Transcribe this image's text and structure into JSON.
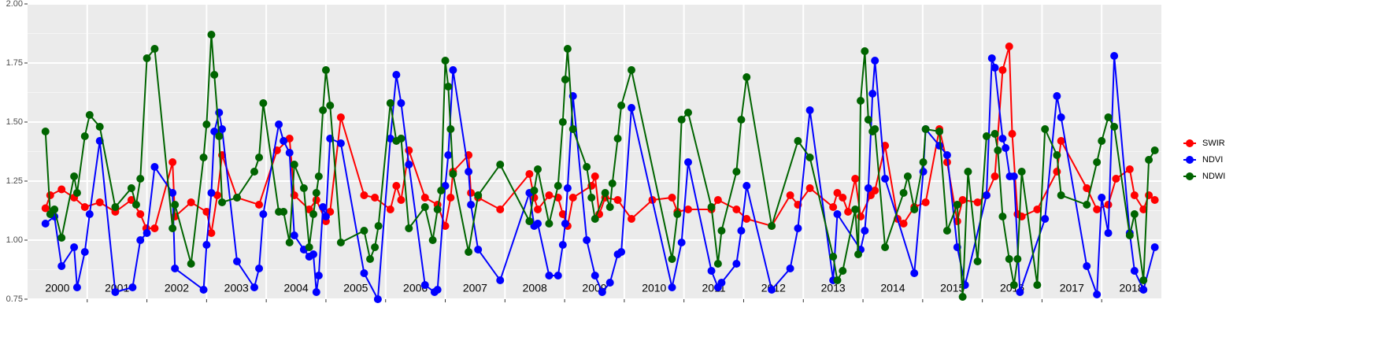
{
  "chart_data": {
    "type": "line",
    "xlim": [
      2000,
      2019
    ],
    "xticks": [
      2001,
      2002,
      2003,
      2004,
      2005,
      2006,
      2007,
      2008,
      2009,
      2010,
      2011,
      2012,
      2013,
      2014,
      2015,
      2016,
      2017,
      2018
    ],
    "ylim": [
      0.75,
      2.0
    ],
    "yticks": [
      0.75,
      {
        "value": 1.0,
        "label": "1.00"
      },
      1.25,
      {
        "value": 1.5,
        "label": "1.50"
      },
      1.75,
      {
        "value": 2.0,
        "label": "2.00"
      }
    ],
    "grid": true,
    "legend": "right",
    "annotations": [
      "2000",
      "2001",
      "2002",
      "2003",
      "2004",
      "2005",
      "2006",
      "2007",
      "2008",
      "2009",
      "2010",
      "2011",
      "2012",
      "2013",
      "2014",
      "2015",
      "2016",
      "2017",
      "2018"
    ],
    "series": [
      {
        "name": "SWIR",
        "color": "#ff0000",
        "x": [
          2000.3,
          2000.38,
          2000.57,
          2000.78,
          2000.96,
          2001.21,
          2001.47,
          2001.74,
          2001.89,
          2001.99,
          2002.13,
          2002.43,
          2002.47,
          2002.74,
          2003.0,
          2003.08,
          2003.18,
          2003.26,
          2003.51,
          2003.88,
          2004.18,
          2004.39,
          2004.47,
          2004.72,
          2004.84,
          2005.0,
          2005.07,
          2005.25,
          2005.64,
          2005.82,
          2006.08,
          2006.18,
          2006.26,
          2006.39,
          2006.66,
          2006.87,
          2007.0,
          2007.09,
          2007.13,
          2007.39,
          2007.43,
          2007.55,
          2007.92,
          2008.41,
          2008.49,
          2008.55,
          2008.74,
          2008.89,
          2008.97,
          2009.05,
          2009.14,
          2009.45,
          2009.51,
          2009.58,
          2009.68,
          2009.89,
          2010.12,
          2010.47,
          2010.8,
          2010.89,
          2011.07,
          2011.46,
          2011.57,
          2011.88,
          2012.05,
          2012.47,
          2012.78,
          2012.91,
          2013.11,
          2013.5,
          2013.57,
          2013.66,
          2013.75,
          2013.87,
          2013.96,
          2014.13,
          2014.2,
          2014.37,
          2014.58,
          2014.68,
          2014.86,
          2015.05,
          2015.28,
          2015.41,
          2015.58,
          2015.67,
          2015.92,
          2016.07,
          2016.21,
          2016.34,
          2016.45,
          2016.5,
          2016.59,
          2016.66,
          2016.92,
          2017.25,
          2017.32,
          2017.75,
          2017.92,
          2018.11,
          2018.24,
          2018.47,
          2018.55,
          2018.7,
          2018.79,
          2018.89
        ],
        "values": [
          1.135,
          1.19,
          1.215,
          1.18,
          1.14,
          1.16,
          1.12,
          1.17,
          1.11,
          1.05,
          1.05,
          1.33,
          1.1,
          1.16,
          1.12,
          1.03,
          1.19,
          1.36,
          1.18,
          1.15,
          1.38,
          1.43,
          1.19,
          1.13,
          1.17,
          1.08,
          1.12,
          1.52,
          1.19,
          1.18,
          1.13,
          1.23,
          1.17,
          1.38,
          1.18,
          1.15,
          1.06,
          1.18,
          1.29,
          1.36,
          1.2,
          1.18,
          1.13,
          1.28,
          1.18,
          1.13,
          1.19,
          1.18,
          1.11,
          1.06,
          1.18,
          1.23,
          1.27,
          1.11,
          1.18,
          1.17,
          1.09,
          1.17,
          1.18,
          1.12,
          1.13,
          1.13,
          1.17,
          1.13,
          1.09,
          1.06,
          1.19,
          1.15,
          1.22,
          1.14,
          1.2,
          1.18,
          1.12,
          1.26,
          1.1,
          1.19,
          1.21,
          1.4,
          1.09,
          1.07,
          1.14,
          1.16,
          1.47,
          1.33,
          1.08,
          1.17,
          1.16,
          1.19,
          1.27,
          1.72,
          1.82,
          1.45,
          1.11,
          1.1,
          1.13,
          1.29,
          1.42,
          1.22,
          1.13,
          1.15,
          1.26,
          1.3,
          1.19,
          1.13,
          1.19,
          1.17
        ]
      },
      {
        "name": "NDVI",
        "color": "#0000ff",
        "x": [
          2000.3,
          2000.45,
          2000.57,
          2000.78,
          2000.83,
          2000.96,
          2001.04,
          2001.21,
          2001.47,
          2001.76,
          2001.89,
          2002.0,
          2002.13,
          2002.43,
          2002.47,
          2002.95,
          2003.0,
          2003.08,
          2003.13,
          2003.21,
          2003.26,
          2003.51,
          2003.8,
          2003.88,
          2003.95,
          2004.21,
          2004.29,
          2004.39,
          2004.47,
          2004.63,
          2004.72,
          2004.79,
          2004.84,
          2004.88,
          2004.95,
          2005.0,
          2005.07,
          2005.25,
          2005.64,
          2005.87,
          2006.08,
          2006.18,
          2006.26,
          2006.39,
          2006.66,
          2006.82,
          2006.87,
          2007.0,
          2007.05,
          2007.13,
          2007.39,
          2007.43,
          2007.55,
          2007.92,
          2008.41,
          2008.49,
          2008.55,
          2008.74,
          2008.89,
          2008.97,
          2009.01,
          2009.05,
          2009.14,
          2009.37,
          2009.51,
          2009.63,
          2009.76,
          2009.89,
          2009.95,
          2010.12,
          2010.8,
          2010.96,
          2011.07,
          2011.46,
          2011.57,
          2011.63,
          2011.88,
          2011.96,
          2012.05,
          2012.47,
          2012.78,
          2012.91,
          2013.11,
          2013.5,
          2013.57,
          2013.96,
          2014.03,
          2014.09,
          2014.16,
          2014.2,
          2014.37,
          2014.86,
          2015.01,
          2015.05,
          2015.28,
          2015.41,
          2015.58,
          2015.71,
          2016.07,
          2016.16,
          2016.21,
          2016.34,
          2016.39,
          2016.46,
          2016.53,
          2016.63,
          2017.05,
          2017.25,
          2017.32,
          2017.75,
          2017.92,
          2018.0,
          2018.11,
          2018.21,
          2018.47,
          2018.55,
          2018.7,
          2018.89
        ],
        "values": [
          1.07,
          1.1,
          0.89,
          0.97,
          0.8,
          0.95,
          1.11,
          1.42,
          0.78,
          0.8,
          1.0,
          1.03,
          1.31,
          1.2,
          0.88,
          0.79,
          0.98,
          1.2,
          1.46,
          1.54,
          1.47,
          0.91,
          0.8,
          0.88,
          1.11,
          1.49,
          1.42,
          1.37,
          1.02,
          0.96,
          0.93,
          0.94,
          0.78,
          0.85,
          1.14,
          1.1,
          1.43,
          1.41,
          0.86,
          0.75,
          1.43,
          1.7,
          1.58,
          1.32,
          0.81,
          0.78,
          0.79,
          1.23,
          1.36,
          1.72,
          1.29,
          1.15,
          0.96,
          0.83,
          1.2,
          1.06,
          1.07,
          0.85,
          0.85,
          0.98,
          1.07,
          1.22,
          1.61,
          1.0,
          0.85,
          0.78,
          0.82,
          0.94,
          0.95,
          1.56,
          0.8,
          0.99,
          1.33,
          0.87,
          0.8,
          0.82,
          0.9,
          1.04,
          1.23,
          0.79,
          0.88,
          1.05,
          1.55,
          0.83,
          1.11,
          0.96,
          1.04,
          1.22,
          1.62,
          1.76,
          1.26,
          0.86,
          1.29,
          1.47,
          1.4,
          1.36,
          0.97,
          0.81,
          1.19,
          1.77,
          1.73,
          1.43,
          1.39,
          1.27,
          1.27,
          0.78,
          1.09,
          1.61,
          1.52,
          0.89,
          0.77,
          1.18,
          1.03,
          1.78,
          1.03,
          0.87,
          0.79,
          0.97
        ]
      },
      {
        "name": "NDWI",
        "color": "#006400",
        "x": [
          2000.3,
          2000.38,
          2000.45,
          2000.57,
          2000.78,
          2000.83,
          2000.96,
          2001.04,
          2001.21,
          2001.47,
          2001.74,
          2001.82,
          2001.89,
          2002.0,
          2002.13,
          2002.43,
          2002.47,
          2002.74,
          2002.95,
          2003.0,
          2003.08,
          2003.13,
          2003.21,
          2003.26,
          2003.51,
          2003.8,
          2003.88,
          2003.95,
          2004.21,
          2004.29,
          2004.39,
          2004.47,
          2004.63,
          2004.72,
          2004.79,
          2004.84,
          2004.88,
          2004.95,
          2005.0,
          2005.07,
          2005.25,
          2005.64,
          2005.74,
          2005.82,
          2005.88,
          2006.08,
          2006.18,
          2006.26,
          2006.39,
          2006.66,
          2006.79,
          2006.87,
          2006.93,
          2007.0,
          2007.05,
          2007.09,
          2007.13,
          2007.39,
          2007.55,
          2007.92,
          2008.41,
          2008.49,
          2008.55,
          2008.74,
          2008.89,
          2008.97,
          2009.01,
          2009.05,
          2009.14,
          2009.37,
          2009.45,
          2009.51,
          2009.68,
          2009.76,
          2009.8,
          2009.89,
          2009.95,
          2010.12,
          2010.8,
          2010.89,
          2010.96,
          2011.07,
          2011.46,
          2011.57,
          2011.63,
          2011.88,
          2011.96,
          2012.05,
          2012.47,
          2012.91,
          2013.11,
          2013.5,
          2013.57,
          2013.66,
          2013.87,
          2013.92,
          2013.96,
          2014.03,
          2014.09,
          2014.16,
          2014.2,
          2014.37,
          2014.68,
          2014.75,
          2014.86,
          2015.01,
          2015.05,
          2015.28,
          2015.41,
          2015.58,
          2015.67,
          2015.76,
          2015.92,
          2016.07,
          2016.21,
          2016.26,
          2016.34,
          2016.45,
          2016.53,
          2016.59,
          2016.66,
          2016.92,
          2017.05,
          2017.25,
          2017.32,
          2017.75,
          2017.92,
          2018.0,
          2018.11,
          2018.21,
          2018.47,
          2018.55,
          2018.7,
          2018.79,
          2018.89
        ],
        "values": [
          1.46,
          1.11,
          1.13,
          1.01,
          1.27,
          1.2,
          1.44,
          1.53,
          1.48,
          1.14,
          1.22,
          1.15,
          1.26,
          1.77,
          1.81,
          1.05,
          1.15,
          0.9,
          1.35,
          1.49,
          1.87,
          1.7,
          1.44,
          1.16,
          1.18,
          1.29,
          1.35,
          1.58,
          1.12,
          1.12,
          0.99,
          1.32,
          1.22,
          0.97,
          1.11,
          1.2,
          1.27,
          1.55,
          1.72,
          1.57,
          0.99,
          1.04,
          0.92,
          0.97,
          1.06,
          1.58,
          1.42,
          1.43,
          1.05,
          1.14,
          1.0,
          1.13,
          1.21,
          1.76,
          1.65,
          1.47,
          1.28,
          0.95,
          1.19,
          1.32,
          1.08,
          1.21,
          1.3,
          1.07,
          1.23,
          1.5,
          1.68,
          1.81,
          1.47,
          1.31,
          1.18,
          1.09,
          1.2,
          1.14,
          1.24,
          1.43,
          1.57,
          1.72,
          0.92,
          1.11,
          1.51,
          1.54,
          1.14,
          0.9,
          1.04,
          1.29,
          1.51,
          1.69,
          1.06,
          1.42,
          1.35,
          0.93,
          0.83,
          0.87,
          1.13,
          0.94,
          1.59,
          1.8,
          1.51,
          1.46,
          1.47,
          0.97,
          1.2,
          1.27,
          1.13,
          1.33,
          1.47,
          1.46,
          1.04,
          1.15,
          0.76,
          1.29,
          0.91,
          1.44,
          1.45,
          1.38,
          1.1,
          0.92,
          0.81,
          0.92,
          1.29,
          0.81,
          1.47,
          1.36,
          1.19,
          1.15,
          1.33,
          1.42,
          1.52,
          1.48,
          1.02,
          1.11,
          0.83,
          1.34,
          1.38
        ]
      }
    ]
  }
}
